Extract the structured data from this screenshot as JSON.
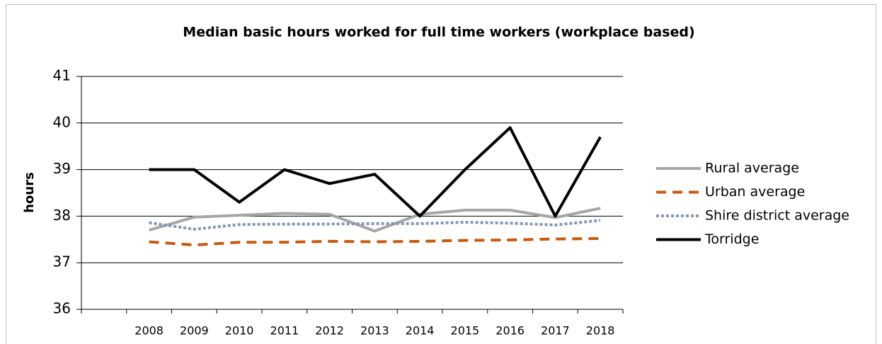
{
  "chart_data": {
    "type": "line",
    "title": "Median basic hours worked for full time workers (workplace based)",
    "y_label": "hours",
    "categories": [
      null,
      "2008",
      "2009",
      "2010",
      "2011",
      "2012",
      "2013",
      "2014",
      "2015",
      "2016",
      "2017",
      "2018"
    ],
    "series": [
      {
        "name": "Rural average",
        "color": "#a6a6a6",
        "dash": "solid",
        "values": [
          null,
          37.7,
          37.98,
          38.02,
          38.06,
          38.04,
          37.68,
          38.04,
          38.13,
          38.13,
          37.97,
          38.17
        ]
      },
      {
        "name": "Urban average",
        "color": "#c55a11",
        "dash": "dashed",
        "values": [
          null,
          37.45,
          37.38,
          37.44,
          37.44,
          37.46,
          37.45,
          37.46,
          37.48,
          37.49,
          37.51,
          37.52
        ]
      },
      {
        "name": "Shire district average",
        "color": "#8497b0",
        "dash": "dotted",
        "values": [
          null,
          37.86,
          37.72,
          37.82,
          37.83,
          37.83,
          37.84,
          37.84,
          37.87,
          37.85,
          37.81,
          37.91
        ]
      },
      {
        "name": "Torridge",
        "color": "#000000",
        "dash": "solid",
        "values": [
          null,
          39.0,
          39.0,
          38.3,
          39.0,
          38.7,
          38.9,
          38.0,
          39.0,
          39.9,
          38.0,
          39.7
        ]
      }
    ],
    "ylim": [
      36,
      41
    ],
    "yticks": [
      36,
      37,
      38,
      39,
      40,
      41
    ],
    "grid": true,
    "legend": "right"
  }
}
